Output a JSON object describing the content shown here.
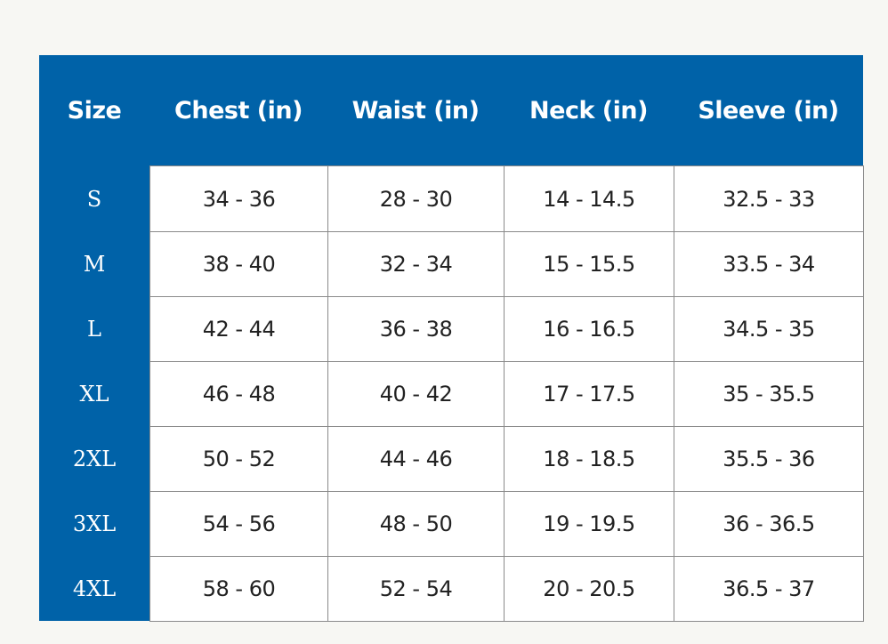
{
  "colors": {
    "header_bg": "#0062a8",
    "page_bg": "#f7f7f3",
    "border": "#8a8a8a"
  },
  "headers": [
    "Size",
    "Chest (in)",
    "Waist (in)",
    "Neck (in)",
    "Sleeve (in)"
  ],
  "rows": [
    [
      "S",
      "34 - 36",
      "28 - 30",
      "14 - 14.5",
      "32.5 - 33"
    ],
    [
      "M",
      "38 - 40",
      "32 - 34",
      "15 - 15.5",
      "33.5 - 34"
    ],
    [
      "L",
      "42 - 44",
      "36 - 38",
      "16 - 16.5",
      "34.5 - 35"
    ],
    [
      "XL",
      "46 - 48",
      "40 - 42",
      "17 - 17.5",
      "35 - 35.5"
    ],
    [
      "2XL",
      "50 - 52",
      "44 - 46",
      "18 - 18.5",
      "35.5 - 36"
    ],
    [
      "3XL",
      "54 - 56",
      "48 - 50",
      "19 - 19.5",
      "36 - 36.5"
    ],
    [
      "4XL",
      "58 - 60",
      "52 - 54",
      "20 - 20.5",
      "36.5 - 37"
    ]
  ]
}
